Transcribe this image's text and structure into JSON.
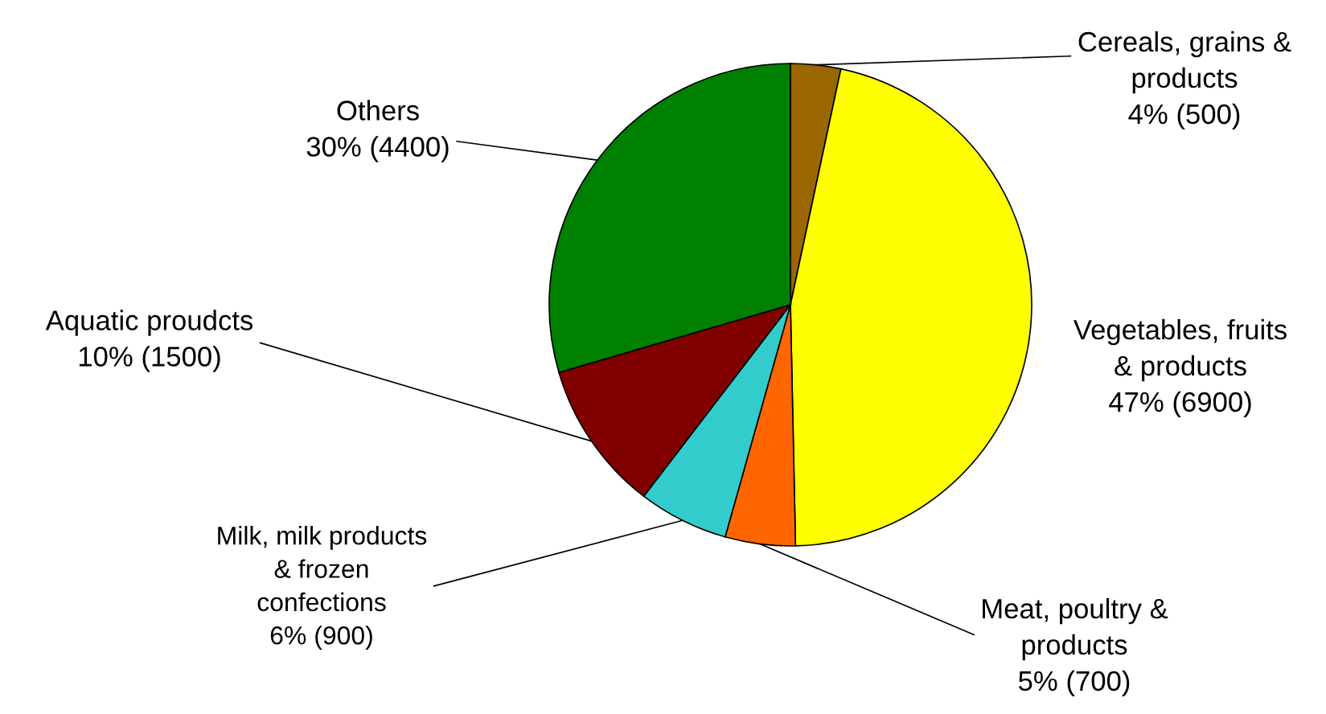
{
  "chart_data": {
    "type": "pie",
    "categories": [
      "Cereals, grains &\nproducts",
      "Vegetables, fruits\n& products",
      "Meat, poultry &\nproducts",
      "Milk, milk products\n& frozen\nconfections",
      "Aquatic proudcts",
      "Others"
    ],
    "values": [
      500,
      6900,
      700,
      900,
      1500,
      4400
    ],
    "value_labels": [
      "4% (500)",
      "47% (6900)",
      "5% (700)",
      "6% (900)",
      "10% (1500)",
      "30% (4400)"
    ],
    "colors": [
      "#996600",
      "#ffff00",
      "#ff6600",
      "#33cccc",
      "#800000",
      "#008000"
    ]
  }
}
